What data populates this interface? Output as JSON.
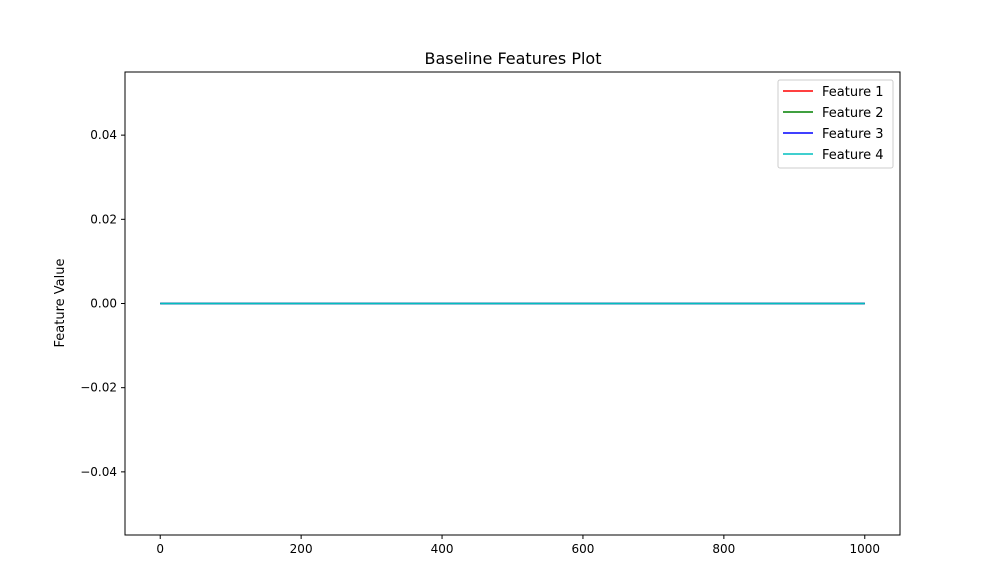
{
  "chart_data": {
    "type": "line",
    "title": "Baseline Features Plot",
    "xlabel": "",
    "ylabel": "Feature Value",
    "xlim": [
      -50,
      1050
    ],
    "ylim": [
      -0.055,
      0.055
    ],
    "x_ticks": [
      0,
      200,
      400,
      600,
      800,
      1000
    ],
    "x_tick_labels": [
      "0",
      "200",
      "400",
      "600",
      "800",
      "1000"
    ],
    "y_ticks": [
      0.04,
      0.02,
      0.0,
      -0.02,
      -0.04
    ],
    "y_tick_labels": [
      "0.04",
      "0.02",
      "0.00",
      "−0.02",
      "−0.04"
    ],
    "grid": false,
    "legend_position": "top-right",
    "x": [
      0,
      1000
    ],
    "series": [
      {
        "name": "Feature 1",
        "color": "#ff0000",
        "values": [
          0.0,
          0.0
        ]
      },
      {
        "name": "Feature 2",
        "color": "#008000",
        "values": [
          0.0,
          0.0
        ]
      },
      {
        "name": "Feature 3",
        "color": "#0000ff",
        "values": [
          0.0,
          0.0
        ]
      },
      {
        "name": "Feature 4",
        "color": "#00bfbf",
        "values": [
          0.0,
          0.0
        ]
      }
    ]
  }
}
